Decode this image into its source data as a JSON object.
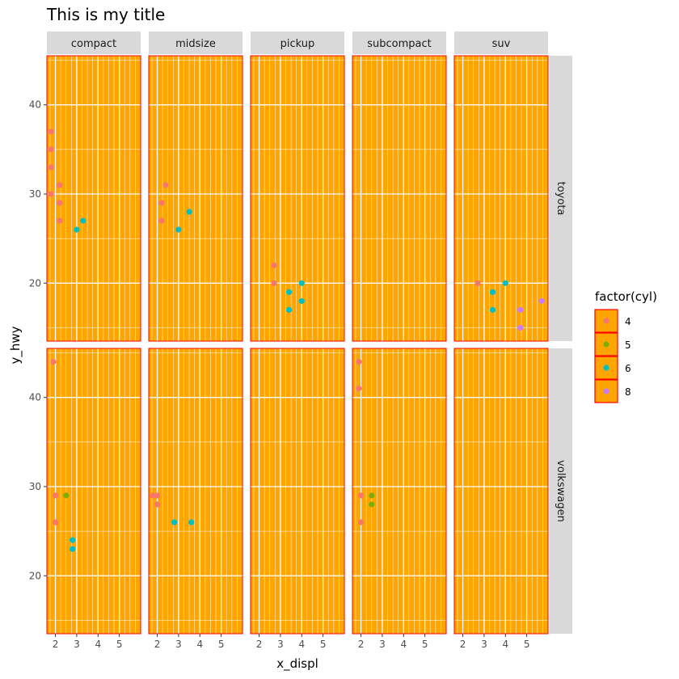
{
  "chart_data": {
    "type": "scatter",
    "title": "This is my title",
    "xlabel": "x_displ",
    "ylabel": "y_hwy",
    "xlim": [
      1.6,
      6.0
    ],
    "ylim": [
      13.5,
      45.5
    ],
    "x_ticks": [
      2,
      3,
      4,
      5
    ],
    "y_ticks": [
      20,
      30,
      40
    ],
    "grid": true,
    "legend_position": "right",
    "panel_background": "#FFA500",
    "panel_border": "#FF0000",
    "grid_color": "#FFFFFF",
    "strip_background": "#D9D9D9",
    "columns": [
      "compact",
      "midsize",
      "pickup",
      "subcompact",
      "suv"
    ],
    "rows": [
      "toyota",
      "volkswagen"
    ],
    "legend": {
      "title": "factor(cyl)",
      "entries": [
        {
          "label": "4",
          "color": "#F8766D"
        },
        {
          "label": "5",
          "color": "#7CAE00"
        },
        {
          "label": "6",
          "color": "#00BFC4"
        },
        {
          "label": "8",
          "color": "#C77CFF"
        }
      ]
    },
    "series": [
      {
        "row": "toyota",
        "col": "compact",
        "points": [
          {
            "x": 1.8,
            "y": 37,
            "cyl": "4"
          },
          {
            "x": 1.8,
            "y": 35,
            "cyl": "4"
          },
          {
            "x": 1.8,
            "y": 33,
            "cyl": "4"
          },
          {
            "x": 1.8,
            "y": 30,
            "cyl": "4"
          },
          {
            "x": 2.2,
            "y": 31,
            "cyl": "4"
          },
          {
            "x": 2.2,
            "y": 29,
            "cyl": "4"
          },
          {
            "x": 2.2,
            "y": 27,
            "cyl": "4"
          },
          {
            "x": 3.0,
            "y": 26,
            "cyl": "6"
          },
          {
            "x": 3.3,
            "y": 27,
            "cyl": "6"
          }
        ]
      },
      {
        "row": "toyota",
        "col": "midsize",
        "points": [
          {
            "x": 2.4,
            "y": 31,
            "cyl": "4"
          },
          {
            "x": 2.2,
            "y": 29,
            "cyl": "4"
          },
          {
            "x": 2.2,
            "y": 27,
            "cyl": "4"
          },
          {
            "x": 3.0,
            "y": 26,
            "cyl": "6"
          },
          {
            "x": 3.5,
            "y": 28,
            "cyl": "6"
          }
        ]
      },
      {
        "row": "toyota",
        "col": "pickup",
        "points": [
          {
            "x": 2.7,
            "y": 22,
            "cyl": "4"
          },
          {
            "x": 2.7,
            "y": 20,
            "cyl": "4"
          },
          {
            "x": 3.4,
            "y": 19,
            "cyl": "6"
          },
          {
            "x": 3.4,
            "y": 17,
            "cyl": "6"
          },
          {
            "x": 4.0,
            "y": 20,
            "cyl": "6"
          },
          {
            "x": 4.0,
            "y": 18,
            "cyl": "6"
          }
        ]
      },
      {
        "row": "toyota",
        "col": "subcompact",
        "points": []
      },
      {
        "row": "toyota",
        "col": "suv",
        "points": [
          {
            "x": 2.7,
            "y": 20,
            "cyl": "4"
          },
          {
            "x": 3.4,
            "y": 19,
            "cyl": "6"
          },
          {
            "x": 3.4,
            "y": 17,
            "cyl": "6"
          },
          {
            "x": 4.0,
            "y": 20,
            "cyl": "6"
          },
          {
            "x": 4.7,
            "y": 17,
            "cyl": "8"
          },
          {
            "x": 4.7,
            "y": 15,
            "cyl": "8"
          },
          {
            "x": 5.7,
            "y": 18,
            "cyl": "8"
          }
        ]
      },
      {
        "row": "volkswagen",
        "col": "compact",
        "points": [
          {
            "x": 1.9,
            "y": 44,
            "cyl": "4"
          },
          {
            "x": 2.0,
            "y": 29,
            "cyl": "4"
          },
          {
            "x": 2.0,
            "y": 26,
            "cyl": "4"
          },
          {
            "x": 2.5,
            "y": 29,
            "cyl": "5"
          },
          {
            "x": 2.8,
            "y": 24,
            "cyl": "6"
          },
          {
            "x": 2.8,
            "y": 23,
            "cyl": "6"
          }
        ]
      },
      {
        "row": "volkswagen",
        "col": "midsize",
        "points": [
          {
            "x": 1.8,
            "y": 29,
            "cyl": "4"
          },
          {
            "x": 2.0,
            "y": 29,
            "cyl": "4"
          },
          {
            "x": 2.0,
            "y": 28,
            "cyl": "4"
          },
          {
            "x": 2.8,
            "y": 26,
            "cyl": "6"
          },
          {
            "x": 3.6,
            "y": 26,
            "cyl": "6"
          }
        ]
      },
      {
        "row": "volkswagen",
        "col": "pickup",
        "points": []
      },
      {
        "row": "volkswagen",
        "col": "subcompact",
        "points": [
          {
            "x": 1.9,
            "y": 44,
            "cyl": "4"
          },
          {
            "x": 1.9,
            "y": 41,
            "cyl": "4"
          },
          {
            "x": 2.0,
            "y": 29,
            "cyl": "4"
          },
          {
            "x": 2.0,
            "y": 26,
            "cyl": "4"
          },
          {
            "x": 2.5,
            "y": 29,
            "cyl": "5"
          },
          {
            "x": 2.5,
            "y": 28,
            "cyl": "5"
          }
        ]
      },
      {
        "row": "volkswagen",
        "col": "suv",
        "points": []
      }
    ]
  }
}
